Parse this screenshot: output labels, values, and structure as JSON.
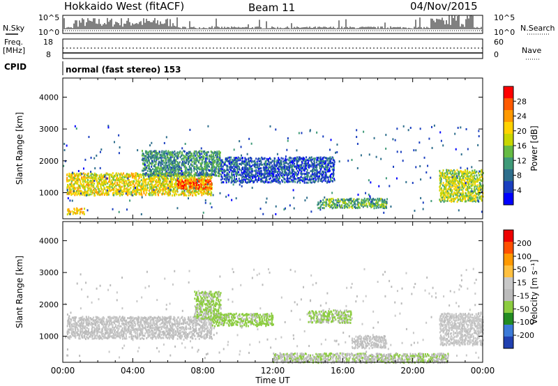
{
  "header": {
    "station": "Hokkaido West (fitACF)",
    "beam": "Beam 11",
    "date": "04/Nov/2015"
  },
  "sky_panel": {
    "left_label": "N.Sky",
    "right_label": "N.Search",
    "axis_ticks_left": [
      "10^5",
      "10^0"
    ],
    "axis_ticks_right": [
      "10^5",
      "10^0"
    ]
  },
  "freq_panel": {
    "left_label_1": "Freq.",
    "left_label_2": "[MHz]",
    "left_ticks": [
      "18",
      "8"
    ],
    "right_ticks": [
      "60",
      "0"
    ],
    "right_label": "Nave"
  },
  "cpid": {
    "label": "CPID",
    "value": "normal (fast stereo) 153"
  },
  "colors": {
    "power": [
      "#0000ff",
      "#1a3fbf",
      "#2e6e8c",
      "#3f9a78",
      "#66bb44",
      "#c8d600",
      "#ffd200",
      "#ff9900",
      "#ff5a00",
      "#ff0000"
    ],
    "velocity": [
      "#2040b0",
      "#3c7ad8",
      "#228b22",
      "#8ccc40",
      "#bbbbbb",
      "#c8c8c8",
      "#ffc040",
      "#ff9900",
      "#ff5000",
      "#ee0000"
    ]
  },
  "chart_data": [
    {
      "type": "heatmap",
      "name_key": "power",
      "ylabel": "Slant Range [km]",
      "yticks": [
        1000,
        2000,
        3000,
        4000
      ],
      "ylim": [
        180,
        4600
      ],
      "xlim": [
        0,
        24
      ],
      "xticks": [
        "00:00",
        "04:00",
        "08:00",
        "12:00",
        "16:00",
        "20:00",
        "00:00"
      ],
      "colorbar": {
        "label": "Power [dB]",
        "ticks": [
          "4",
          "8",
          "12",
          "16",
          "20",
          "24",
          "28"
        ],
        "range": [
          0,
          30
        ]
      },
      "echo_regions": [
        {
          "t0": 0.2,
          "t1": 8.5,
          "r0": 900,
          "r1": 1600,
          "level": 18
        },
        {
          "t0": 4.5,
          "t1": 9.0,
          "r0": 1500,
          "r1": 2300,
          "level": 10
        },
        {
          "t0": 6.5,
          "t1": 8.5,
          "r0": 1100,
          "r1": 1400,
          "level": 24
        },
        {
          "t0": 9.0,
          "t1": 15.5,
          "r0": 1300,
          "r1": 2100,
          "level": 6
        },
        {
          "t0": 14.5,
          "t1": 18.5,
          "r0": 500,
          "r1": 800,
          "level": 12
        },
        {
          "t0": 21.5,
          "t1": 24.0,
          "r0": 700,
          "r1": 1700,
          "level": 16
        },
        {
          "t0": 0.2,
          "t1": 1.2,
          "r0": 300,
          "r1": 500,
          "level": 20
        }
      ]
    },
    {
      "type": "heatmap",
      "name_key": "velocity",
      "ylabel": "Slant Range [km]",
      "yticks": [
        1000,
        2000,
        3000,
        4000
      ],
      "ylim": [
        180,
        4600
      ],
      "xlim": [
        0,
        24
      ],
      "xticks": [
        "00:00",
        "04:00",
        "08:00",
        "12:00",
        "16:00",
        "20:00",
        "00:00"
      ],
      "xlabel": "Time UT",
      "colorbar": {
        "label": "Velocity [m s⁻¹]",
        "ticks": [
          "200",
          "100",
          "50",
          "15",
          "-15",
          "-50",
          "-100",
          "-200"
        ],
        "range": [
          -250,
          250
        ]
      },
      "echo_regions": [
        {
          "t0": 0.2,
          "t1": 8.5,
          "r0": 900,
          "r1": 1600,
          "level": 0
        },
        {
          "t0": 7.5,
          "t1": 9.0,
          "r0": 1500,
          "r1": 2400,
          "level": -60
        },
        {
          "t0": 8.5,
          "t1": 12.0,
          "r0": 1300,
          "r1": 1700,
          "level": -70
        },
        {
          "t0": 14.0,
          "t1": 16.5,
          "r0": 1400,
          "r1": 1800,
          "level": -60
        },
        {
          "t0": 12.0,
          "t1": 22.0,
          "r0": 150,
          "r1": 450,
          "level": -40
        },
        {
          "t0": 21.5,
          "t1": 24.0,
          "r0": 700,
          "r1": 1700,
          "level": 20
        },
        {
          "t0": 16.5,
          "t1": 18.5,
          "r0": 600,
          "r1": 1000,
          "level": 0
        }
      ]
    }
  ]
}
